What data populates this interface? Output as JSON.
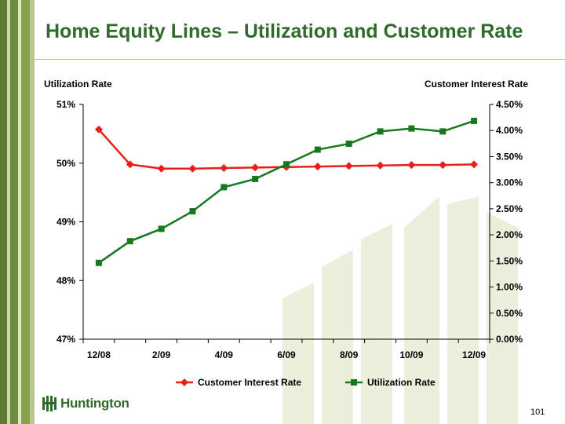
{
  "slide": {
    "title": "Home Equity Lines – Utilization and Customer Rate",
    "page_number": "101",
    "logo_text": "Huntington"
  },
  "colors": {
    "title_green": "#2f6b2a",
    "customer_rate": "#e8201a",
    "utilization": "#17791e",
    "stripe_green": "#5a7a32",
    "watermark": "#ecefdc"
  },
  "chart_data": {
    "type": "line",
    "x": [
      "12/08",
      "1/09",
      "2/09",
      "3/09",
      "4/09",
      "5/09",
      "6/09",
      "7/09",
      "8/09",
      "9/09",
      "10/09",
      "11/09",
      "12/09"
    ],
    "x_tick_labels": [
      "12/08",
      "",
      "2/09",
      "",
      "4/09",
      "",
      "6/09",
      "",
      "8/09",
      "",
      "10/09",
      "",
      "12/09"
    ],
    "left_axis": {
      "title": "Utilization Rate",
      "ylim": [
        47,
        51
      ],
      "ticks": [
        "47%",
        "48%",
        "49%",
        "50%",
        "51%"
      ]
    },
    "right_axis": {
      "title": "Customer Interest Rate",
      "ylim": [
        0,
        4.5
      ],
      "ticks": [
        "0.00%",
        "0.50%",
        "1.00%",
        "1.50%",
        "2.00%",
        "2.50%",
        "3.00%",
        "3.50%",
        "4.00%",
        "4.50%"
      ]
    },
    "series": [
      {
        "name": "Customer Interest Rate",
        "axis": "right",
        "marker": "diamond",
        "color": "#e8201a",
        "values": [
          4.02,
          3.35,
          3.27,
          3.27,
          3.28,
          3.29,
          3.3,
          3.31,
          3.32,
          3.33,
          3.34,
          3.34,
          3.35
        ]
      },
      {
        "name": "Utilization Rate",
        "axis": "left",
        "marker": "square",
        "color": "#17791e",
        "values": [
          48.3,
          48.67,
          48.88,
          49.18,
          49.59,
          49.73,
          49.98,
          50.23,
          50.33,
          50.54,
          50.59,
          50.54,
          50.72
        ]
      }
    ],
    "legend_position": "bottom",
    "grid": false
  }
}
